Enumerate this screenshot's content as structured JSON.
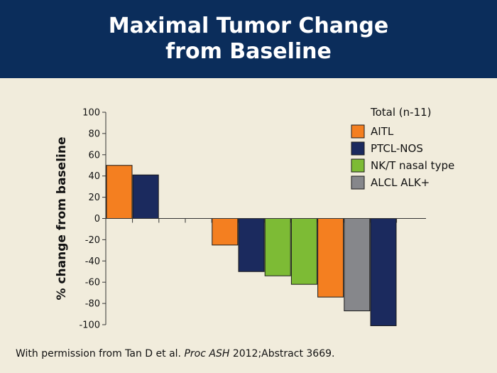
{
  "header": {
    "title_line1": "Maximal Tumor Change",
    "title_line2": "from Baseline"
  },
  "caption": {
    "before": "With permission from Tan D et al. ",
    "journal": "Proc ASH",
    "after": " 2012;Abstract 3669."
  },
  "chart_data": {
    "type": "bar",
    "ylabel": "% change from baseline",
    "ylim": [
      -100,
      100
    ],
    "yticks": [
      100,
      80,
      60,
      40,
      20,
      0,
      -20,
      -40,
      -60,
      -80,
      -100
    ],
    "legend_title": "Total (n-11)",
    "legend": [
      {
        "label": "AITL",
        "color": "#f47f20"
      },
      {
        "label": "PTCL-NOS",
        "color": "#1b2a5e"
      },
      {
        "label": "NK/T nasal type",
        "color": "#7dbb35"
      },
      {
        "label": "ALCL ALK+",
        "color": "#86878b"
      }
    ],
    "legend_placement": "top-right",
    "values": [
      50,
      41,
      0,
      0,
      -25,
      -50,
      -54,
      -62,
      -74,
      -87,
      -101
    ],
    "colors": [
      "#f47f20",
      "#1b2a5e",
      "#f47f20",
      "#f47f20",
      "#f47f20",
      "#1b2a5e",
      "#7dbb35",
      "#7dbb35",
      "#f47f20",
      "#86878b",
      "#1b2a5e"
    ]
  }
}
